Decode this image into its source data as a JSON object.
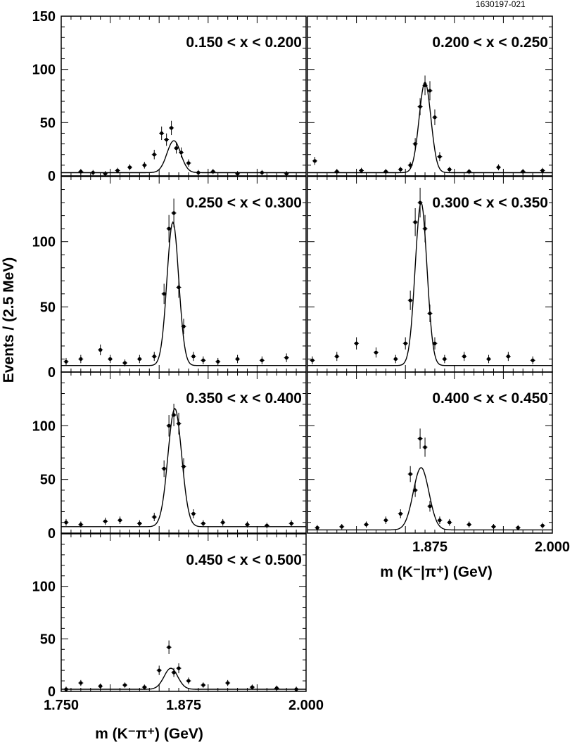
{
  "figure_id": "1630197-021",
  "chart_data": {
    "type": "scatter",
    "title": "",
    "ylabel": "Events / (2.5 MeV)",
    "xlabel": "m (K⁻π⁺) (GeV)",
    "xlabel_right": "m (K⁻|π⁺) (GeV)",
    "xlim": [
      1.75,
      2.0
    ],
    "x_ticks": [
      "1.750",
      "1.875",
      "2.000"
    ],
    "ylim": [
      0,
      150
    ],
    "y_ticks": [
      "0",
      "50",
      "100",
      "150"
    ],
    "grid": false,
    "fit_curve": "gaussian signal plus flat background",
    "panels": [
      {
        "label": "0.150 < x < 0.200",
        "peak_x": 1.865,
        "sigma": 0.007,
        "amplitude": 30,
        "background": 3,
        "points": [
          [
            1.77,
            4
          ],
          [
            1.7825,
            3
          ],
          [
            1.795,
            2
          ],
          [
            1.8075,
            5
          ],
          [
            1.82,
            8
          ],
          [
            1.835,
            10
          ],
          [
            1.845,
            20
          ],
          [
            1.8525,
            40
          ],
          [
            1.8575,
            34
          ],
          [
            1.8625,
            45
          ],
          [
            1.8675,
            26
          ],
          [
            1.8725,
            22
          ],
          [
            1.88,
            12
          ],
          [
            1.89,
            3
          ],
          [
            1.905,
            4
          ],
          [
            1.93,
            2
          ],
          [
            1.955,
            3
          ],
          [
            1.98,
            2
          ]
        ]
      },
      {
        "label": "0.200 < x < 0.250",
        "peak_x": 1.87,
        "sigma": 0.006,
        "amplitude": 85,
        "background": 3,
        "points": [
          [
            1.7575,
            14
          ],
          [
            1.78,
            4
          ],
          [
            1.805,
            5
          ],
          [
            1.83,
            4
          ],
          [
            1.845,
            6
          ],
          [
            1.855,
            10
          ],
          [
            1.86,
            30
          ],
          [
            1.865,
            65
          ],
          [
            1.87,
            85
          ],
          [
            1.875,
            80
          ],
          [
            1.88,
            55
          ],
          [
            1.885,
            18
          ],
          [
            1.895,
            6
          ],
          [
            1.915,
            4
          ],
          [
            1.945,
            8
          ],
          [
            1.97,
            4
          ],
          [
            1.99,
            5
          ]
        ]
      },
      {
        "label": "0.250 < x < 0.300",
        "peak_x": 1.864,
        "sigma": 0.006,
        "amplitude": 110,
        "background": 5,
        "points": [
          [
            1.755,
            8
          ],
          [
            1.77,
            10
          ],
          [
            1.79,
            17
          ],
          [
            1.8,
            10
          ],
          [
            1.815,
            7
          ],
          [
            1.83,
            10
          ],
          [
            1.845,
            12
          ],
          [
            1.855,
            60
          ],
          [
            1.86,
            110
          ],
          [
            1.865,
            122
          ],
          [
            1.87,
            65
          ],
          [
            1.875,
            35
          ],
          [
            1.885,
            12
          ],
          [
            1.895,
            9
          ],
          [
            1.91,
            8
          ],
          [
            1.93,
            10
          ],
          [
            1.955,
            9
          ],
          [
            1.98,
            11
          ]
        ]
      },
      {
        "label": "0.300 < x < 0.350",
        "peak_x": 1.866,
        "sigma": 0.006,
        "amplitude": 125,
        "background": 5,
        "points": [
          [
            1.755,
            9
          ],
          [
            1.78,
            12
          ],
          [
            1.8,
            22
          ],
          [
            1.82,
            15
          ],
          [
            1.84,
            10
          ],
          [
            1.85,
            22
          ],
          [
            1.855,
            55
          ],
          [
            1.86,
            115
          ],
          [
            1.865,
            130
          ],
          [
            1.87,
            110
          ],
          [
            1.875,
            45
          ],
          [
            1.88,
            22
          ],
          [
            1.89,
            10
          ],
          [
            1.91,
            12
          ],
          [
            1.935,
            10
          ],
          [
            1.955,
            12
          ],
          [
            1.98,
            9
          ]
        ]
      },
      {
        "label": "0.350 < x < 0.400",
        "peak_x": 1.866,
        "sigma": 0.007,
        "amplitude": 110,
        "background": 6,
        "points": [
          [
            1.755,
            10
          ],
          [
            1.77,
            8
          ],
          [
            1.795,
            11
          ],
          [
            1.81,
            12
          ],
          [
            1.83,
            9
          ],
          [
            1.845,
            15
          ],
          [
            1.855,
            60
          ],
          [
            1.86,
            100
          ],
          [
            1.865,
            110
          ],
          [
            1.87,
            102
          ],
          [
            1.875,
            62
          ],
          [
            1.885,
            18
          ],
          [
            1.895,
            9
          ],
          [
            1.915,
            10
          ],
          [
            1.94,
            8
          ],
          [
            1.96,
            7
          ],
          [
            1.985,
            9
          ]
        ]
      },
      {
        "label": "0.400 < x < 0.450",
        "peak_x": 1.866,
        "sigma": 0.008,
        "amplitude": 58,
        "background": 3,
        "points": [
          [
            1.76,
            5
          ],
          [
            1.785,
            6
          ],
          [
            1.81,
            8
          ],
          [
            1.83,
            12
          ],
          [
            1.845,
            18
          ],
          [
            1.855,
            55
          ],
          [
            1.86,
            40
          ],
          [
            1.865,
            88
          ],
          [
            1.87,
            80
          ],
          [
            1.875,
            25
          ],
          [
            1.885,
            12
          ],
          [
            1.895,
            10
          ],
          [
            1.915,
            8
          ],
          [
            1.94,
            6
          ],
          [
            1.965,
            5
          ],
          [
            1.99,
            7
          ]
        ]
      },
      {
        "label": "0.450 < x < 0.500",
        "peak_x": 1.862,
        "sigma": 0.007,
        "amplitude": 20,
        "background": 2,
        "points": [
          [
            1.755,
            2
          ],
          [
            1.77,
            8
          ],
          [
            1.79,
            5
          ],
          [
            1.815,
            6
          ],
          [
            1.835,
            4
          ],
          [
            1.85,
            20
          ],
          [
            1.86,
            42
          ],
          [
            1.865,
            18
          ],
          [
            1.87,
            22
          ],
          [
            1.88,
            10
          ],
          [
            1.895,
            6
          ],
          [
            1.92,
            8
          ],
          [
            1.945,
            4
          ],
          [
            1.97,
            3
          ],
          [
            1.99,
            2
          ]
        ]
      }
    ]
  }
}
